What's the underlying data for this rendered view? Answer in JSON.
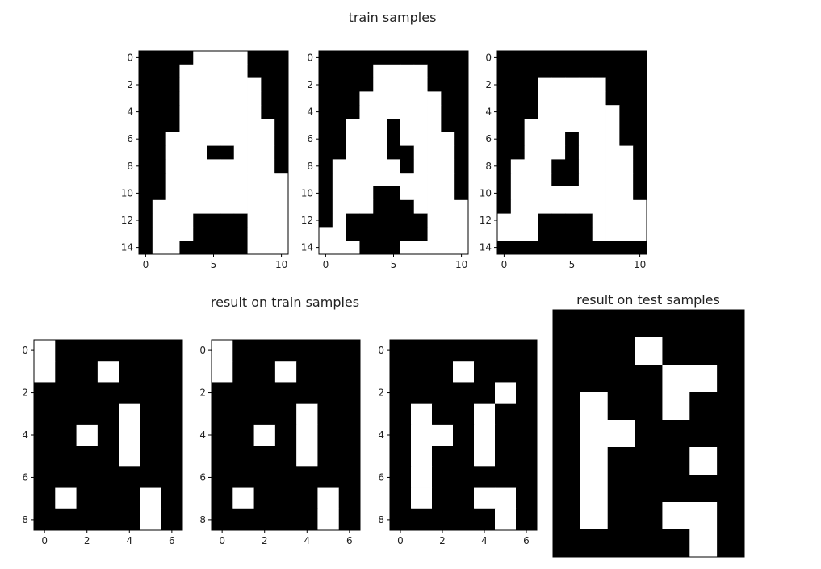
{
  "figure": {
    "top_title": "train samples",
    "bottom_left_title": "result on train samples",
    "bottom_right_title": "result on test samples"
  },
  "colors": {
    "on": "#ffffff",
    "off": "#000000",
    "axis": "#000000",
    "text": "#222222"
  },
  "chart_data": [
    {
      "type": "heatmap",
      "title": "",
      "rows": 15,
      "cols": 11,
      "xticks": [
        0,
        5,
        10
      ],
      "yticks": [
        0,
        2,
        4,
        6,
        8,
        10,
        12,
        14
      ],
      "grid": [
        [
          0,
          0,
          0,
          0,
          1,
          1,
          1,
          1,
          0,
          0,
          0
        ],
        [
          0,
          0,
          0,
          1,
          1,
          1,
          1,
          1,
          0,
          0,
          0
        ],
        [
          0,
          0,
          0,
          1,
          1,
          1,
          1,
          1,
          1,
          0,
          0
        ],
        [
          0,
          0,
          0,
          1,
          1,
          1,
          1,
          1,
          1,
          0,
          0
        ],
        [
          0,
          0,
          0,
          1,
          1,
          1,
          1,
          1,
          1,
          0,
          0
        ],
        [
          0,
          0,
          0,
          1,
          1,
          1,
          1,
          1,
          1,
          1,
          0
        ],
        [
          0,
          0,
          1,
          1,
          1,
          1,
          1,
          1,
          1,
          1,
          0
        ],
        [
          0,
          0,
          1,
          1,
          1,
          0,
          0,
          1,
          1,
          1,
          0
        ],
        [
          0,
          0,
          1,
          1,
          1,
          1,
          1,
          1,
          1,
          1,
          0
        ],
        [
          0,
          0,
          1,
          1,
          1,
          1,
          1,
          1,
          1,
          1,
          1
        ],
        [
          0,
          0,
          1,
          1,
          1,
          1,
          1,
          1,
          1,
          1,
          1
        ],
        [
          0,
          1,
          1,
          1,
          1,
          1,
          1,
          1,
          1,
          1,
          1
        ],
        [
          0,
          1,
          1,
          1,
          0,
          0,
          0,
          0,
          1,
          1,
          1
        ],
        [
          0,
          1,
          1,
          1,
          0,
          0,
          0,
          0,
          1,
          1,
          1
        ],
        [
          0,
          1,
          1,
          0,
          0,
          0,
          0,
          0,
          1,
          1,
          1
        ]
      ]
    },
    {
      "type": "heatmap",
      "title": "",
      "rows": 15,
      "cols": 11,
      "xticks": [
        0,
        5,
        10
      ],
      "yticks": [
        0,
        2,
        4,
        6,
        8,
        10,
        12,
        14
      ],
      "grid": [
        [
          0,
          0,
          0,
          0,
          0,
          0,
          0,
          0,
          0,
          0,
          0
        ],
        [
          0,
          0,
          0,
          0,
          1,
          1,
          1,
          1,
          0,
          0,
          0
        ],
        [
          0,
          0,
          0,
          0,
          1,
          1,
          1,
          1,
          0,
          0,
          0
        ],
        [
          0,
          0,
          0,
          1,
          1,
          1,
          1,
          1,
          1,
          0,
          0
        ],
        [
          0,
          0,
          0,
          1,
          1,
          1,
          1,
          1,
          1,
          0,
          0
        ],
        [
          0,
          0,
          1,
          1,
          1,
          0,
          1,
          1,
          1,
          0,
          0
        ],
        [
          0,
          0,
          1,
          1,
          1,
          0,
          1,
          1,
          1,
          1,
          0
        ],
        [
          0,
          0,
          1,
          1,
          1,
          0,
          0,
          1,
          1,
          1,
          0
        ],
        [
          0,
          1,
          1,
          1,
          1,
          1,
          0,
          1,
          1,
          1,
          0
        ],
        [
          0,
          1,
          1,
          1,
          1,
          1,
          1,
          1,
          1,
          1,
          0
        ],
        [
          0,
          1,
          1,
          1,
          0,
          0,
          1,
          1,
          1,
          1,
          0
        ],
        [
          0,
          1,
          1,
          1,
          0,
          0,
          0,
          1,
          1,
          1,
          1
        ],
        [
          0,
          1,
          0,
          0,
          0,
          0,
          0,
          0,
          1,
          1,
          1
        ],
        [
          1,
          1,
          0,
          0,
          0,
          0,
          0,
          0,
          1,
          1,
          1
        ],
        [
          1,
          1,
          1,
          0,
          0,
          0,
          1,
          1,
          1,
          1,
          1
        ]
      ]
    },
    {
      "type": "heatmap",
      "title": "",
      "rows": 15,
      "cols": 11,
      "xticks": [
        0,
        5,
        10
      ],
      "yticks": [
        0,
        2,
        4,
        6,
        8,
        10,
        12,
        14
      ],
      "grid": [
        [
          0,
          0,
          0,
          0,
          0,
          0,
          0,
          0,
          0,
          0,
          0
        ],
        [
          0,
          0,
          0,
          0,
          0,
          0,
          0,
          0,
          0,
          0,
          0
        ],
        [
          0,
          0,
          0,
          1,
          1,
          1,
          1,
          1,
          0,
          0,
          0
        ],
        [
          0,
          0,
          0,
          1,
          1,
          1,
          1,
          1,
          0,
          0,
          0
        ],
        [
          0,
          0,
          0,
          1,
          1,
          1,
          1,
          1,
          1,
          0,
          0
        ],
        [
          0,
          0,
          1,
          1,
          1,
          1,
          1,
          1,
          1,
          0,
          0
        ],
        [
          0,
          0,
          1,
          1,
          1,
          0,
          1,
          1,
          1,
          0,
          0
        ],
        [
          0,
          0,
          1,
          1,
          1,
          0,
          1,
          1,
          1,
          1,
          0
        ],
        [
          0,
          1,
          1,
          1,
          0,
          0,
          1,
          1,
          1,
          1,
          0
        ],
        [
          0,
          1,
          1,
          1,
          0,
          0,
          1,
          1,
          1,
          1,
          0
        ],
        [
          0,
          1,
          1,
          1,
          1,
          1,
          1,
          1,
          1,
          1,
          0
        ],
        [
          0,
          1,
          1,
          1,
          1,
          1,
          1,
          1,
          1,
          1,
          1
        ],
        [
          1,
          1,
          1,
          0,
          0,
          0,
          0,
          1,
          1,
          1,
          1
        ],
        [
          1,
          1,
          1,
          0,
          0,
          0,
          0,
          1,
          1,
          1,
          1
        ],
        [
          0,
          0,
          0,
          0,
          0,
          0,
          0,
          0,
          0,
          0,
          0
        ]
      ]
    },
    {
      "type": "heatmap",
      "title": "",
      "rows": 9,
      "cols": 7,
      "xticks": [
        0,
        2,
        4,
        6
      ],
      "yticks": [
        0,
        2,
        4,
        6,
        8
      ],
      "grid": [
        [
          1,
          0,
          0,
          0,
          0,
          0,
          0
        ],
        [
          1,
          0,
          0,
          1,
          0,
          0,
          0
        ],
        [
          0,
          0,
          0,
          0,
          0,
          0,
          0
        ],
        [
          0,
          0,
          0,
          0,
          1,
          0,
          0
        ],
        [
          0,
          0,
          1,
          0,
          1,
          0,
          0
        ],
        [
          0,
          0,
          0,
          0,
          1,
          0,
          0
        ],
        [
          0,
          0,
          0,
          0,
          0,
          0,
          0
        ],
        [
          0,
          1,
          0,
          0,
          0,
          1,
          0
        ],
        [
          0,
          0,
          0,
          0,
          0,
          1,
          0
        ]
      ]
    },
    {
      "type": "heatmap",
      "title": "",
      "rows": 9,
      "cols": 7,
      "xticks": [
        0,
        2,
        4,
        6
      ],
      "yticks": [
        0,
        2,
        4,
        6,
        8
      ],
      "grid": [
        [
          1,
          0,
          0,
          0,
          0,
          0,
          0
        ],
        [
          1,
          0,
          0,
          1,
          0,
          0,
          0
        ],
        [
          0,
          0,
          0,
          0,
          0,
          0,
          0
        ],
        [
          0,
          0,
          0,
          0,
          1,
          0,
          0
        ],
        [
          0,
          0,
          1,
          0,
          1,
          0,
          0
        ],
        [
          0,
          0,
          0,
          0,
          1,
          0,
          0
        ],
        [
          0,
          0,
          0,
          0,
          0,
          0,
          0
        ],
        [
          0,
          1,
          0,
          0,
          0,
          1,
          0
        ],
        [
          0,
          0,
          0,
          0,
          0,
          1,
          0
        ]
      ]
    },
    {
      "type": "heatmap",
      "title": "",
      "rows": 9,
      "cols": 7,
      "xticks": [
        0,
        2,
        4,
        6
      ],
      "yticks": [
        0,
        2,
        4,
        6,
        8
      ],
      "grid": [
        [
          0,
          0,
          0,
          0,
          0,
          0,
          0
        ],
        [
          0,
          0,
          0,
          1,
          0,
          0,
          0
        ],
        [
          0,
          0,
          0,
          0,
          0,
          1,
          0
        ],
        [
          0,
          1,
          0,
          0,
          1,
          0,
          0
        ],
        [
          0,
          1,
          1,
          0,
          1,
          0,
          0
        ],
        [
          0,
          1,
          0,
          0,
          1,
          0,
          0
        ],
        [
          0,
          1,
          0,
          0,
          0,
          0,
          0
        ],
        [
          0,
          1,
          0,
          0,
          1,
          1,
          0
        ],
        [
          0,
          0,
          0,
          0,
          0,
          1,
          0
        ]
      ]
    },
    {
      "type": "heatmap",
      "title": "",
      "rows": 9,
      "cols": 7,
      "xticks": [],
      "yticks": [],
      "grid": [
        [
          0,
          0,
          0,
          0,
          0,
          0,
          0
        ],
        [
          0,
          0,
          0,
          1,
          0,
          0,
          0
        ],
        [
          0,
          0,
          0,
          0,
          1,
          1,
          0
        ],
        [
          0,
          1,
          0,
          0,
          1,
          0,
          0
        ],
        [
          0,
          1,
          1,
          0,
          0,
          0,
          0
        ],
        [
          0,
          1,
          0,
          0,
          0,
          1,
          0
        ],
        [
          0,
          1,
          0,
          0,
          0,
          0,
          0
        ],
        [
          0,
          1,
          0,
          0,
          1,
          1,
          0
        ],
        [
          0,
          0,
          0,
          0,
          0,
          1,
          0
        ]
      ]
    }
  ]
}
